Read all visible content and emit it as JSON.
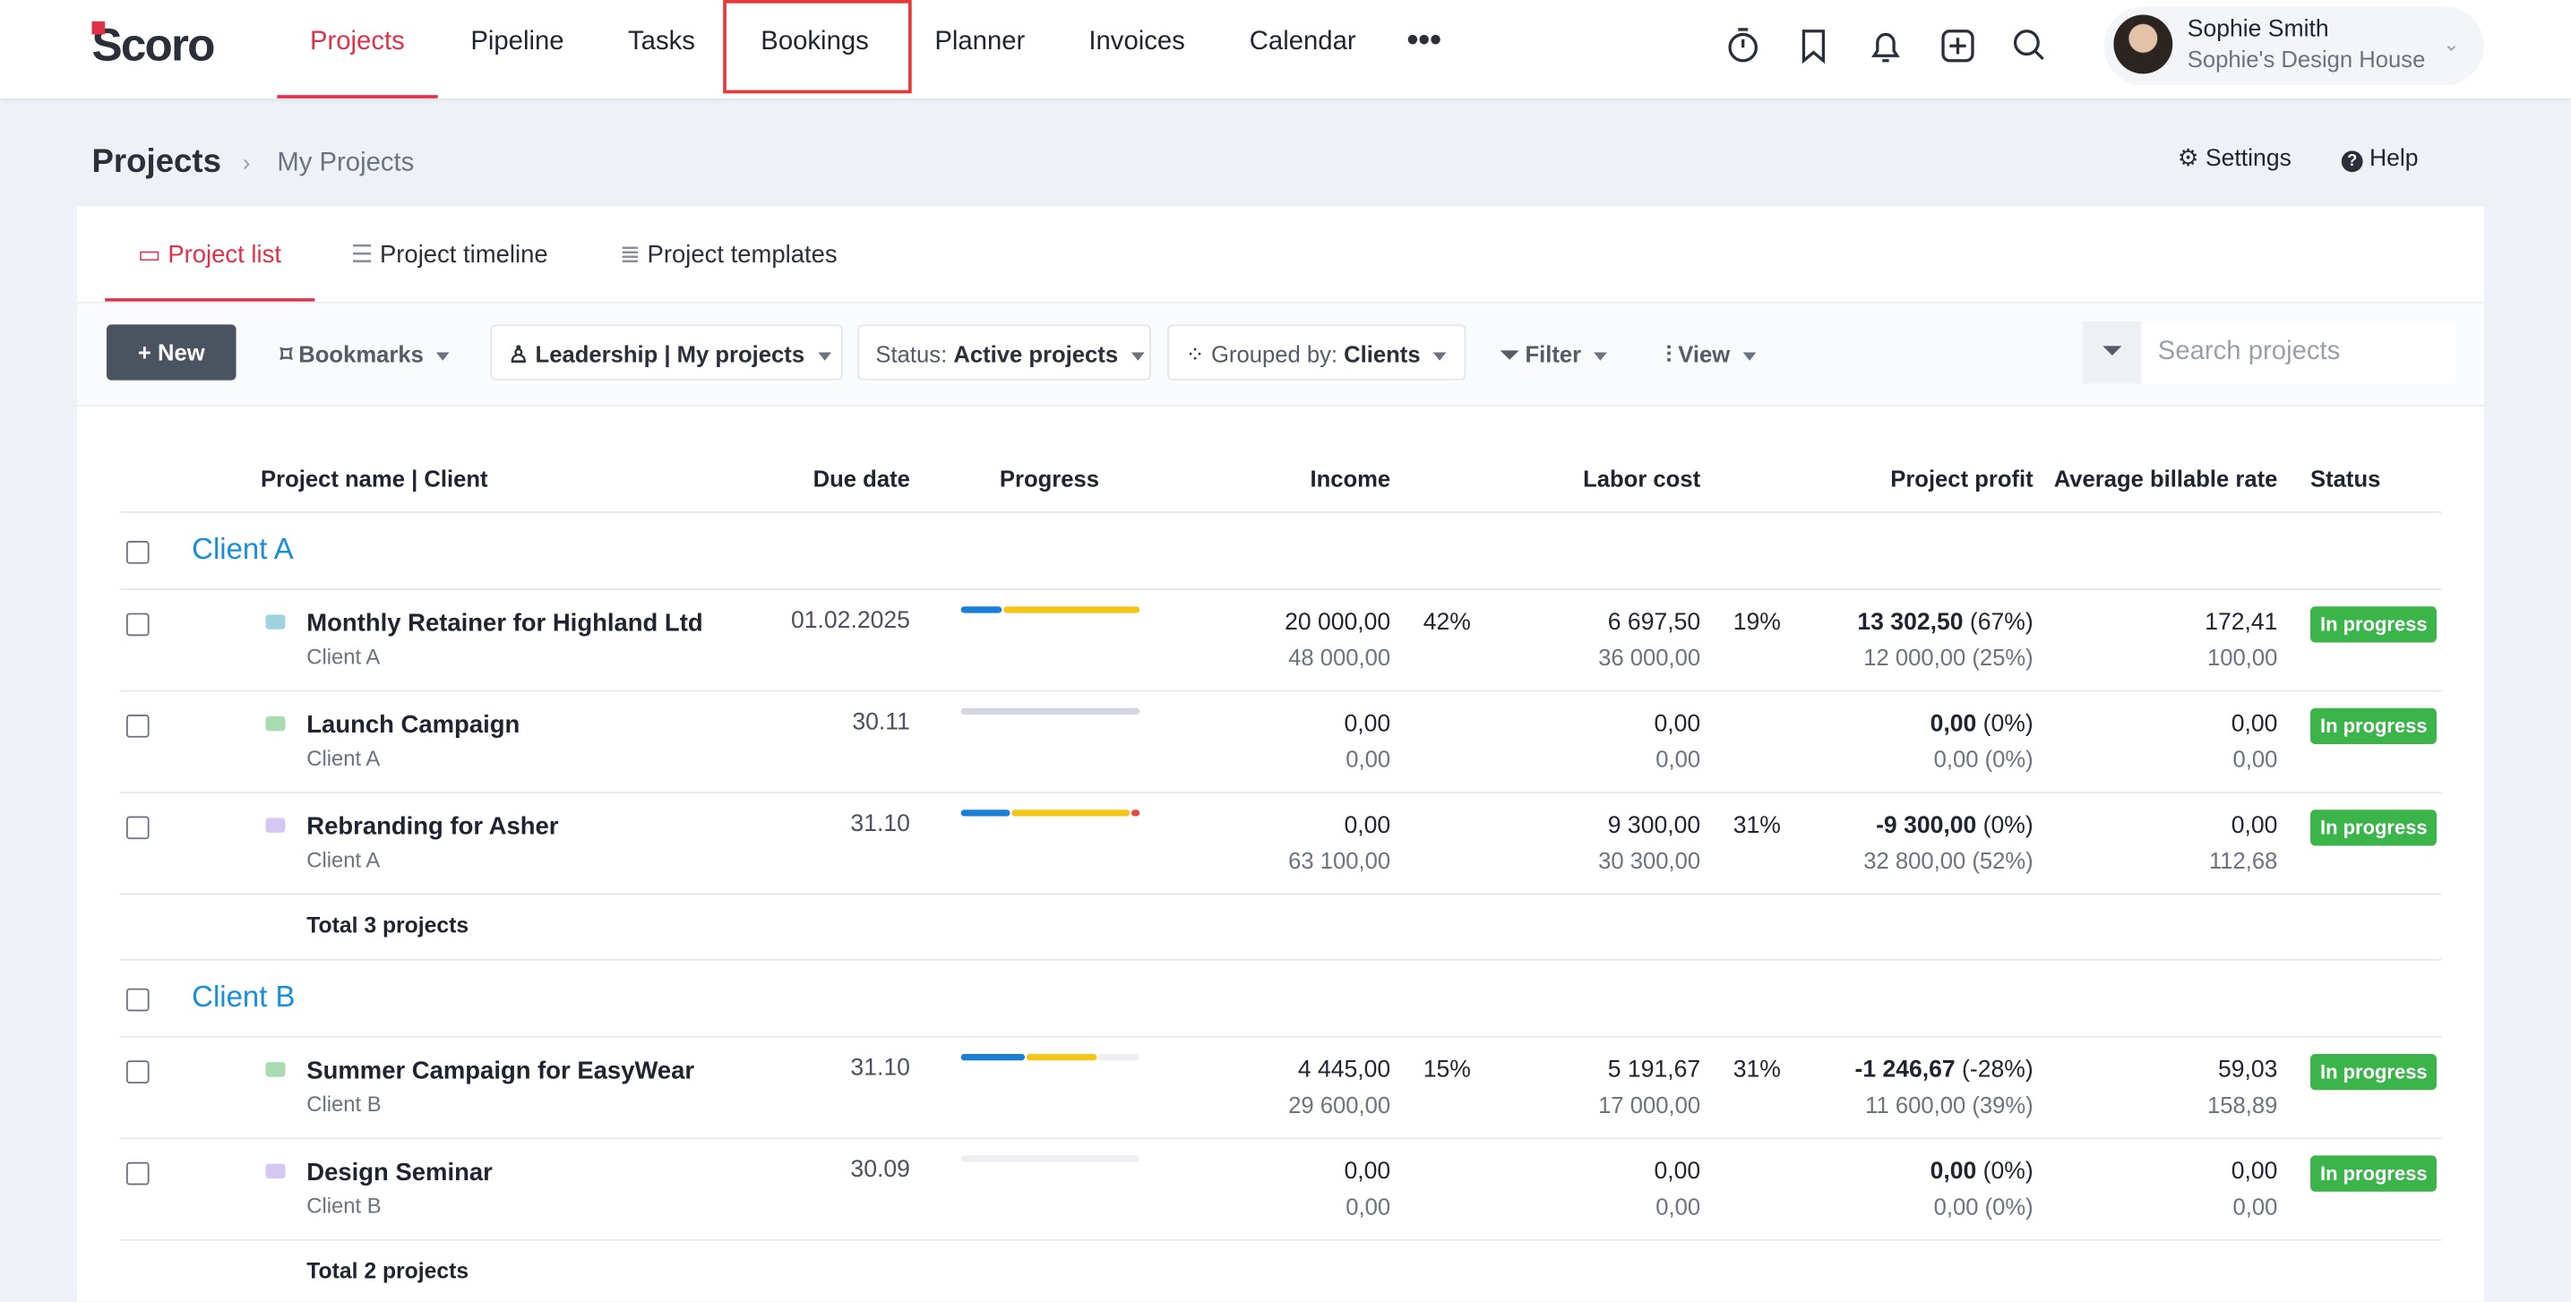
{
  "nav": {
    "logo": "Scoro",
    "items": [
      "Projects",
      "Pipeline",
      "Tasks",
      "Bookings",
      "Planner",
      "Invoices",
      "Calendar"
    ],
    "user": {
      "name": "Sophie Smith",
      "company": "Sophie's Design House"
    }
  },
  "breadcrumb": {
    "title": "Projects",
    "current": "My Projects"
  },
  "header_actions": [
    "Settings",
    "Help"
  ],
  "tabs": [
    "Project list",
    "Project timeline",
    "Project templates"
  ],
  "toolbar": {
    "new": "+ New",
    "bookmarks": "Bookmarks",
    "scope": "Leadership | My projects",
    "status_label": "Status:",
    "status_value": "Active projects",
    "group_label": "Grouped by:",
    "group_value": "Clients",
    "filter": "Filter",
    "view": "View",
    "search_placeholder": "Search projects"
  },
  "table": {
    "columns": [
      "Project name | Client",
      "Due date",
      "Progress",
      "Income",
      "Labor cost",
      "Project profit",
      "Average billable rate",
      "Status"
    ],
    "groups": [
      {
        "name": "Client A",
        "total": "Total 3 projects",
        "rows": [
          {
            "name": "Monthly Retainer for Highland Ltd",
            "client": "Client A",
            "due": "01.02.2025",
            "income": "20 000,00",
            "income_sub": "48 000,00",
            "income_pct": "42%",
            "labor": "6 697,50",
            "labor_sub": "36 000,00",
            "labor_pct": "19%",
            "profit": "13 302,50",
            "profit_pct": "(67%)",
            "profit_sub": "12 000,00 (25%)",
            "rate": "172,41",
            "rate_sub": "100,00",
            "status": "In progress"
          },
          {
            "name": "Launch Campaign",
            "client": "Client A",
            "due": "30.11",
            "income": "0,00",
            "income_sub": "0,00",
            "income_pct": null,
            "labor": "0,00",
            "labor_sub": "0,00",
            "labor_pct": null,
            "profit": "0,00",
            "profit_pct": "(0%)",
            "profit_sub": "0,00 (0%)",
            "rate": "0,00",
            "rate_sub": "0,00",
            "status": "In progress"
          },
          {
            "name": "Rebranding for Asher",
            "client": "Client A",
            "due": "31.10",
            "income": "0,00",
            "income_sub": "63 100,00",
            "income_pct": null,
            "labor": "9 300,00",
            "labor_sub": "30 300,00",
            "labor_pct": "31%",
            "profit": "-9 300,00",
            "profit_pct": "(0%)",
            "profit_sub": "32 800,00 (52%)",
            "rate": "0,00",
            "rate_sub": "112,68",
            "status": "In progress"
          }
        ]
      },
      {
        "name": "Client B",
        "total": "Total 2 projects",
        "rows": [
          {
            "name": "Summer Campaign for EasyWear",
            "client": "Client B",
            "due": "31.10",
            "income": "4 445,00",
            "income_sub": "29 600,00",
            "income_pct": "15%",
            "labor": "5 191,67",
            "labor_sub": "17 000,00",
            "labor_pct": "31%",
            "profit": "-1 246,67",
            "profit_pct": "(-28%)",
            "profit_sub": "11 600,00 (39%)",
            "rate": "59,03",
            "rate_sub": "158,89",
            "status": "In progress"
          },
          {
            "name": "Design Seminar",
            "client": "Client B",
            "due": "30.09",
            "income": "0,00",
            "income_sub": "0,00",
            "income_pct": null,
            "labor": "0,00",
            "labor_sub": "0,00",
            "labor_pct": null,
            "profit": "0,00",
            "profit_pct": "(0%)",
            "profit_sub": "0,00 (0%)",
            "rate": "0,00",
            "rate_sub": "0,00",
            "status": "In progress"
          }
        ]
      }
    ]
  }
}
